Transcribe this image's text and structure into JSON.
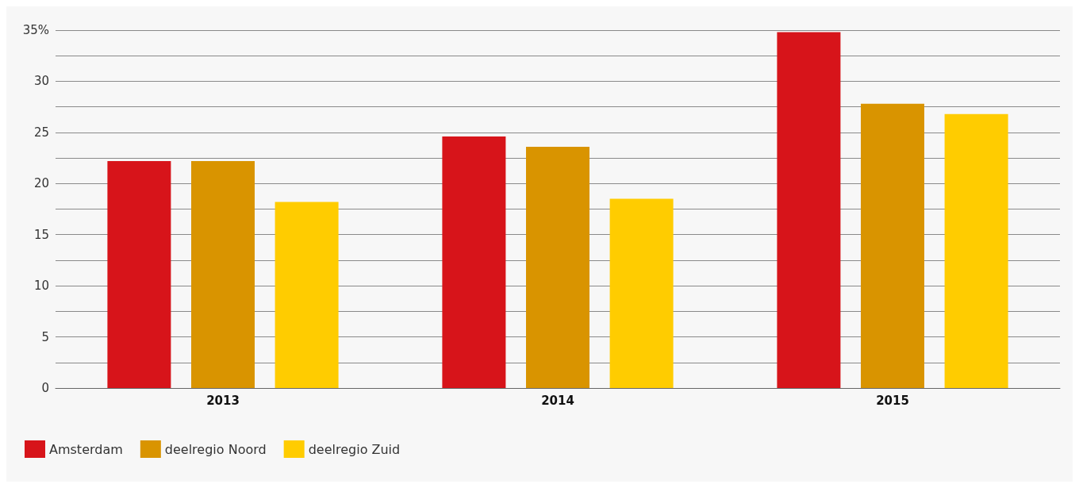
{
  "chart_data": {
    "type": "bar",
    "categories": [
      "2013",
      "2014",
      "2015"
    ],
    "series": [
      {
        "name": "Amsterdam",
        "color": "#d7141a",
        "values": [
          22.2,
          24.6,
          34.8
        ]
      },
      {
        "name": "deelregio Noord",
        "color": "#d99400",
        "values": [
          22.2,
          23.6,
          27.8
        ]
      },
      {
        "name": "deelregio Zuid",
        "color": "#ffcc00",
        "values": [
          18.2,
          18.5,
          26.8
        ]
      }
    ],
    "ylim": [
      0,
      35
    ],
    "yticks": [
      0,
      {
        "value": 2.5,
        "label": null
      },
      5,
      {
        "value": 7.5,
        "label": null
      },
      10,
      {
        "value": 12.5,
        "label": null
      },
      15,
      {
        "value": 17.5,
        "label": null
      },
      20,
      {
        "value": 22.5,
        "label": null
      },
      25,
      {
        "value": 27.5,
        "label": null
      },
      30,
      {
        "value": 32.5,
        "label": null
      },
      {
        "value": 35,
        "label": "35%"
      }
    ],
    "grid": "y",
    "legend": "bottom left"
  }
}
